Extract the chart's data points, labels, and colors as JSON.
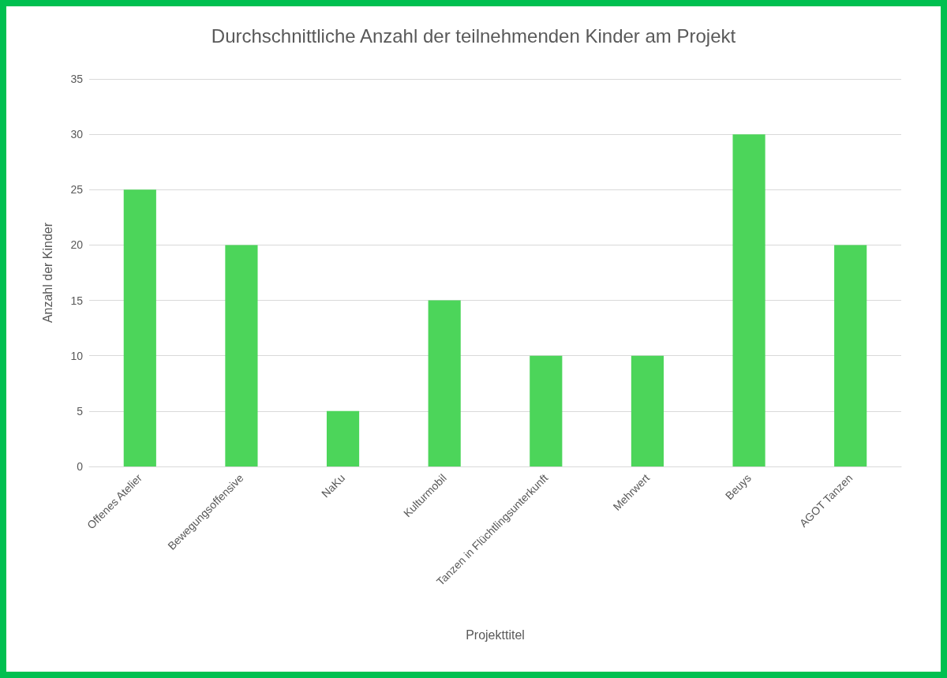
{
  "chart_data": {
    "type": "bar",
    "title": "Durchschnittliche Anzahl der teilnehmenden Kinder am Projekt",
    "xlabel": "Projekttitel",
    "ylabel": "Anzahl der Kinder",
    "categories": [
      "Offenes Atelier",
      "Bewegungsoffensive",
      "NaKu",
      "Kulturmobil",
      "Tanzen in Flüchtlingsunterkunft",
      "Mehrwert",
      "Beuys",
      "AGOT Tanzen"
    ],
    "values": [
      25,
      20,
      5,
      15,
      10,
      10,
      30,
      20
    ],
    "color": "#4cd55a",
    "ylim": [
      0,
      35
    ],
    "yticks": [
      0,
      5,
      10,
      15,
      20,
      25,
      30,
      35
    ],
    "grid": "y"
  }
}
